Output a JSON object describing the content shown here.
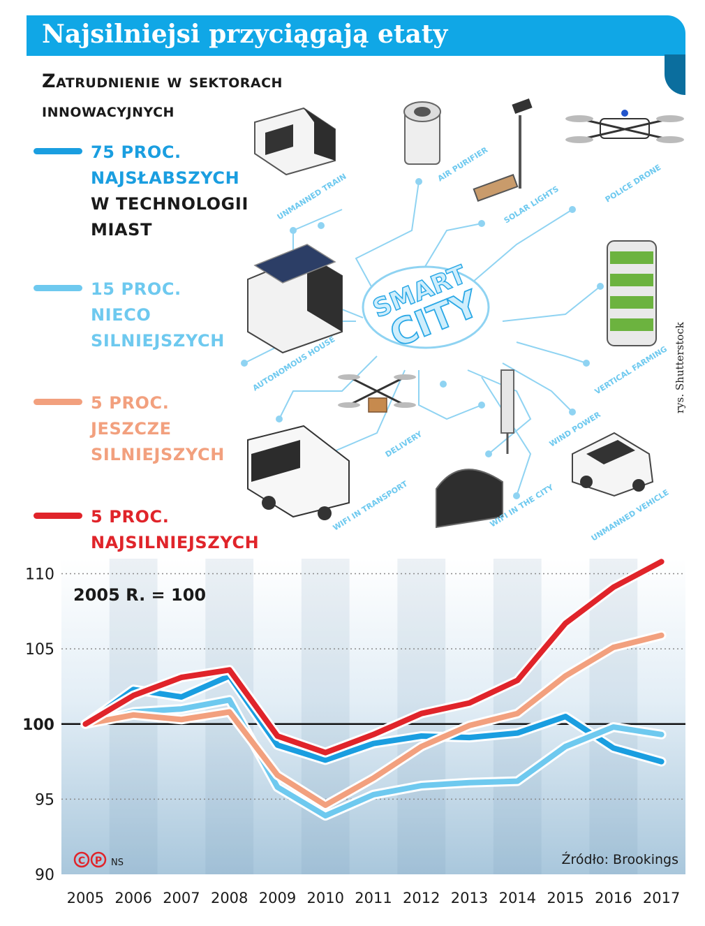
{
  "header": {
    "title": "Najsilniejsi przyciągają etaty",
    "subtitle": "Zatrudnienie w sektorach innowacyjnych"
  },
  "legend": [
    {
      "lines": [
        "75 proc.",
        "najsłabszych",
        "w technologii",
        "miast"
      ],
      "color": "#1a9ee0"
    },
    {
      "lines": [
        "15 proc.",
        "nieco",
        "silniejszych"
      ],
      "color": "#6ec9ef"
    },
    {
      "lines": [
        "5 proc.",
        "jeszcze",
        "silniejszych"
      ],
      "color": "#f2a07e"
    },
    {
      "lines": [
        "5 proc.",
        "najsilniejszych"
      ],
      "color": "#e0242a"
    }
  ],
  "credit": "rys. Shutterstock",
  "illustration": {
    "center_line1": "SMART",
    "center_line2": "CITY",
    "labels": [
      "UNMANNED TRAIN",
      "AIR PURIFIER",
      "SOLAR LIGHTS",
      "POLICE DRONE",
      "AUTONOMOUS HOUSE",
      "VERTICAL FARMING",
      "DELIVERY",
      "WIND POWER",
      "WIFI IN TRANSPORT",
      "WIFI IN THE CITY",
      "UNMANNED VEHICLE"
    ]
  },
  "chart_data": {
    "type": "line",
    "title": "",
    "annotation": "2005 r. = 100",
    "xlabel": "",
    "ylabel": "",
    "x": [
      2005,
      2006,
      2007,
      2008,
      2009,
      2010,
      2011,
      2012,
      2013,
      2014,
      2015,
      2016,
      2017
    ],
    "ylim": [
      90,
      111
    ],
    "yticks": [
      90,
      95,
      100,
      105,
      110
    ],
    "baseline": 100,
    "series": [
      {
        "name": "75 proc. najsłabszych w technologii miast",
        "color": "#1a9ee0",
        "values": [
          100,
          102.3,
          101.8,
          103.2,
          98.6,
          97.6,
          98.7,
          99.2,
          99.1,
          99.4,
          100.5,
          98.4,
          97.5
        ]
      },
      {
        "name": "15 proc. nieco silniejszych",
        "color": "#6ec9ef",
        "values": [
          100,
          100.8,
          101.0,
          101.6,
          95.8,
          93.9,
          95.3,
          95.9,
          96.1,
          96.2,
          98.5,
          99.8,
          99.3
        ]
      },
      {
        "name": "5 proc. jeszcze silniejszych",
        "color": "#f2a07e",
        "values": [
          100,
          100.6,
          100.3,
          100.8,
          96.6,
          94.6,
          96.4,
          98.5,
          99.9,
          100.7,
          103.2,
          105.1,
          105.9
        ]
      },
      {
        "name": "5 proc. najsilniejszych",
        "color": "#e0242a",
        "values": [
          100,
          101.9,
          103.1,
          103.6,
          99.2,
          98.1,
          99.3,
          100.7,
          101.4,
          102.9,
          106.7,
          109.1,
          110.8
        ]
      }
    ],
    "source": "Źródło: Brookings",
    "logo_text": "NS"
  }
}
